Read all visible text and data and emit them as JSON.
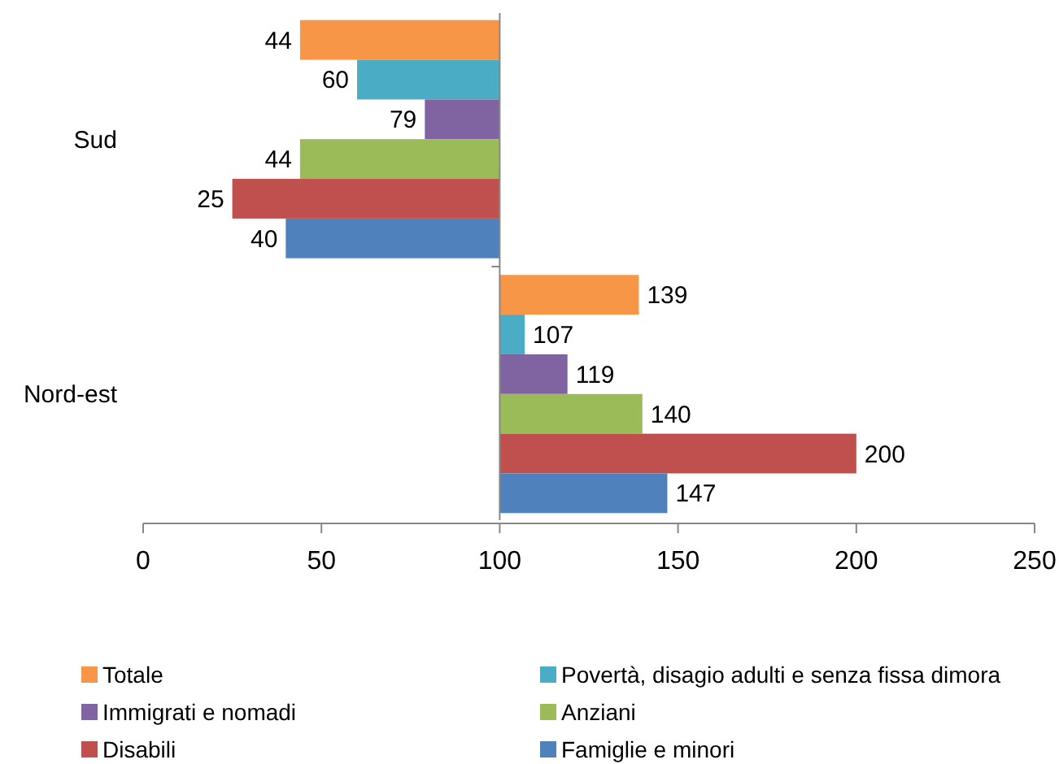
{
  "chart_data": {
    "type": "bar",
    "orientation": "horizontal",
    "categories": [
      "Sud",
      "Nord-est"
    ],
    "series": [
      {
        "name": "Totale",
        "color": "#f79646",
        "base": [
          100,
          100
        ],
        "values": [
          -56,
          39
        ],
        "value_labels": [
          "44",
          "139"
        ]
      },
      {
        "name": "Povertà, disagio adulti e senza fissa dimora",
        "color": "#4bacc6",
        "base": [
          100,
          100
        ],
        "values": [
          -40,
          7
        ],
        "value_labels": [
          "60",
          "107"
        ]
      },
      {
        "name": "Immigrati e nomadi",
        "color": "#8064a2",
        "base": [
          100,
          100
        ],
        "values": [
          -21,
          19
        ],
        "value_labels": [
          "79",
          "119"
        ]
      },
      {
        "name": "Anziani",
        "color": "#9bbb59",
        "base": [
          100,
          100
        ],
        "values": [
          -56,
          40
        ],
        "value_labels": [
          "44",
          "140"
        ]
      },
      {
        "name": "Disabili",
        "color": "#c0504d",
        "base": [
          100,
          100
        ],
        "values": [
          -75,
          100
        ],
        "value_labels": [
          "25",
          "200"
        ]
      },
      {
        "name": "Famiglie e minori",
        "color": "#4f81bd",
        "base": [
          100,
          100
        ],
        "values": [
          -60,
          47
        ],
        "value_labels": [
          "40",
          "147"
        ]
      }
    ],
    "xlim": [
      0,
      250
    ],
    "xticks": [
      0,
      50,
      100,
      150,
      200,
      250
    ],
    "legend": "bottom"
  }
}
